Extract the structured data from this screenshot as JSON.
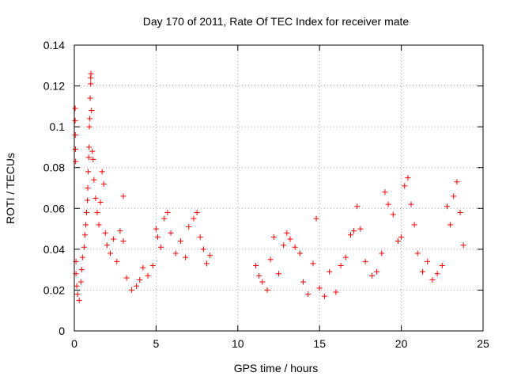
{
  "chart_data": {
    "type": "scatter",
    "title": "Day 170 of 2011, Rate Of TEC Index for receiver mate",
    "xlabel": "GPS time / hours",
    "ylabel": "ROTI / TECUs",
    "xlim": [
      0,
      25
    ],
    "ylim": [
      0,
      0.14
    ],
    "x_ticks": [
      0,
      5,
      10,
      15,
      20,
      25
    ],
    "x_tick_labels": [
      "0",
      "5",
      "10",
      "15",
      "20",
      "25"
    ],
    "y_ticks": [
      0,
      0.02,
      0.04,
      0.06,
      0.08,
      0.1,
      0.12,
      0.14
    ],
    "y_tick_labels": [
      "0",
      "0.02",
      "0.04",
      "0.06",
      "0.08",
      "0.1",
      "0.12",
      "0.14"
    ],
    "grid": true,
    "marker": "+",
    "marker_color": "#ff0000",
    "series": [
      {
        "name": "ROTI",
        "points": [
          [
            0.05,
            0.109
          ],
          [
            0.05,
            0.103
          ],
          [
            0.06,
            0.096
          ],
          [
            0.07,
            0.089
          ],
          [
            0.08,
            0.083
          ],
          [
            0.1,
            0.034
          ],
          [
            0.1,
            0.028
          ],
          [
            0.15,
            0.022
          ],
          [
            0.2,
            0.018
          ],
          [
            0.3,
            0.015
          ],
          [
            0.4,
            0.024
          ],
          [
            0.45,
            0.03
          ],
          [
            0.5,
            0.036
          ],
          [
            0.6,
            0.041
          ],
          [
            0.65,
            0.047
          ],
          [
            0.7,
            0.052
          ],
          [
            0.75,
            0.058
          ],
          [
            0.8,
            0.064
          ],
          [
            0.82,
            0.07
          ],
          [
            0.85,
            0.078
          ],
          [
            0.88,
            0.085
          ],
          [
            0.9,
            0.09
          ],
          [
            0.92,
            0.1
          ],
          [
            0.95,
            0.104
          ],
          [
            0.97,
            0.114
          ],
          [
            1.0,
            0.121
          ],
          [
            1.0,
            0.124
          ],
          [
            1.02,
            0.126
          ],
          [
            1.05,
            0.108
          ],
          [
            1.1,
            0.088
          ],
          [
            1.15,
            0.084
          ],
          [
            1.2,
            0.074
          ],
          [
            1.3,
            0.065
          ],
          [
            1.4,
            0.058
          ],
          [
            1.5,
            0.052
          ],
          [
            1.6,
            0.063
          ],
          [
            1.7,
            0.078
          ],
          [
            1.8,
            0.072
          ],
          [
            1.9,
            0.048
          ],
          [
            2.0,
            0.042
          ],
          [
            2.2,
            0.038
          ],
          [
            2.4,
            0.045
          ],
          [
            2.6,
            0.034
          ],
          [
            2.8,
            0.049
          ],
          [
            3.0,
            0.044
          ],
          [
            3.0,
            0.066
          ],
          [
            3.2,
            0.026
          ],
          [
            3.5,
            0.02
          ],
          [
            3.8,
            0.022
          ],
          [
            4.0,
            0.025
          ],
          [
            4.2,
            0.031
          ],
          [
            4.5,
            0.027
          ],
          [
            4.8,
            0.032
          ],
          [
            5.0,
            0.05
          ],
          [
            5.1,
            0.046
          ],
          [
            5.3,
            0.041
          ],
          [
            5.5,
            0.055
          ],
          [
            5.7,
            0.058
          ],
          [
            5.9,
            0.048
          ],
          [
            6.2,
            0.038
          ],
          [
            6.5,
            0.044
          ],
          [
            6.8,
            0.036
          ],
          [
            7.0,
            0.051
          ],
          [
            7.3,
            0.055
          ],
          [
            7.5,
            0.058
          ],
          [
            7.7,
            0.046
          ],
          [
            7.9,
            0.04
          ],
          [
            8.1,
            0.033
          ],
          [
            8.3,
            0.037
          ],
          [
            11.1,
            0.032
          ],
          [
            11.3,
            0.027
          ],
          [
            11.5,
            0.024
          ],
          [
            11.8,
            0.02
          ],
          [
            12.0,
            0.035
          ],
          [
            12.2,
            0.046
          ],
          [
            12.5,
            0.028
          ],
          [
            12.8,
            0.042
          ],
          [
            13.0,
            0.048
          ],
          [
            13.2,
            0.045
          ],
          [
            13.5,
            0.041
          ],
          [
            13.8,
            0.038
          ],
          [
            14.0,
            0.024
          ],
          [
            14.3,
            0.018
          ],
          [
            14.6,
            0.033
          ],
          [
            14.8,
            0.055
          ],
          [
            15.0,
            0.021
          ],
          [
            15.3,
            0.017
          ],
          [
            15.6,
            0.029
          ],
          [
            16.0,
            0.019
          ],
          [
            16.3,
            0.032
          ],
          [
            16.6,
            0.036
          ],
          [
            16.9,
            0.047
          ],
          [
            17.1,
            0.049
          ],
          [
            17.3,
            0.061
          ],
          [
            17.5,
            0.05
          ],
          [
            17.8,
            0.034
          ],
          [
            18.2,
            0.027
          ],
          [
            18.5,
            0.029
          ],
          [
            18.8,
            0.038
          ],
          [
            19.0,
            0.068
          ],
          [
            19.2,
            0.062
          ],
          [
            19.5,
            0.057
          ],
          [
            19.8,
            0.044
          ],
          [
            20.0,
            0.046
          ],
          [
            20.2,
            0.071
          ],
          [
            20.4,
            0.075
          ],
          [
            20.6,
            0.062
          ],
          [
            20.8,
            0.052
          ],
          [
            21.0,
            0.038
          ],
          [
            21.3,
            0.029
          ],
          [
            21.6,
            0.034
          ],
          [
            21.9,
            0.025
          ],
          [
            22.2,
            0.028
          ],
          [
            22.5,
            0.032
          ],
          [
            22.8,
            0.061
          ],
          [
            23.0,
            0.052
          ],
          [
            23.2,
            0.066
          ],
          [
            23.4,
            0.073
          ],
          [
            23.6,
            0.058
          ],
          [
            23.8,
            0.042
          ]
        ]
      }
    ]
  }
}
